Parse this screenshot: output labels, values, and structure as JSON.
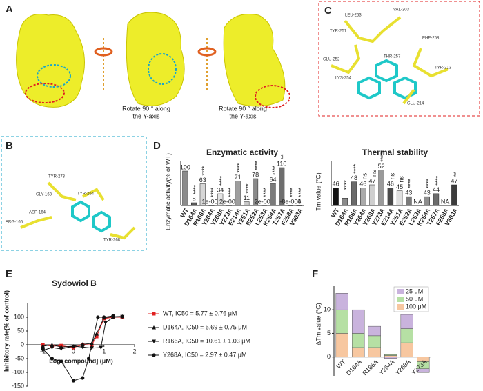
{
  "panels": {
    "A": {
      "letter": "A",
      "captions": [
        [
          "Rotate 90 ° along",
          "the Y-axis"
        ],
        [
          "Rotate 90 ° along",
          "the Y-axis"
        ]
      ]
    },
    "B": {
      "letter": "B",
      "residues": [
        "TYR-273",
        "GLY-163",
        "TYR-264",
        "ASP-164",
        "ARG-166",
        "TYR-268"
      ]
    },
    "C": {
      "letter": "C",
      "residues": [
        "LEU-253",
        "VAL-303",
        "TYR-251",
        "PHE-258",
        "GLU-252",
        "LYS-254",
        "THR-257",
        "TYR-213",
        "GLU-214"
      ]
    },
    "D": {
      "letter": "D"
    },
    "E": {
      "letter": "E"
    },
    "F": {
      "letter": "F"
    }
  },
  "chart_data": [
    {
      "type": "bar",
      "title": "Enzymatic activity",
      "y_label": "Enzymatic activity(% of WT)",
      "categories": [
        "WT",
        "D164A",
        "R166A",
        "Y264A",
        "Y268A",
        "Y273A",
        "E214A",
        "Y251A",
        "E252A",
        "L253A",
        "K254A",
        "T257A",
        "F258A",
        "V303A"
      ],
      "values": [
        100,
        8,
        63,
        0.1,
        34,
        0.2,
        71,
        11,
        78,
        0.2,
        64,
        110,
        -0.0008,
        0
      ],
      "value_labels": [
        "100",
        "8",
        "63",
        "1e-001",
        "34",
        "2e-001",
        "71",
        "11",
        "78",
        "2e-001",
        "64",
        "110",
        "-8e-004",
        "0"
      ],
      "significance": [
        null,
        "****",
        "****",
        "****",
        "****",
        "****",
        "****",
        "****",
        "****",
        "****",
        "****",
        "**",
        "****",
        "****"
      ],
      "colors": [
        "#8c8c8c",
        "#5a5a5a",
        "#d6d6d6",
        "#9a9a9a",
        "#e4e4e4",
        "#7a7a7a",
        "#9e9e9e",
        "#c8c8c8",
        "#8a8a8a",
        "#b0b0b0",
        "#7c7c7c",
        "#6e6e6e",
        "#aaaaaa",
        "#555555"
      ],
      "ylim": [
        0,
        120
      ]
    },
    {
      "type": "bar",
      "title": "Thermal stability",
      "y_label": "Tm value (°C)",
      "categories": [
        "WT",
        "D164A",
        "R166A",
        "Y264A",
        "Y268A",
        "Y273A",
        "E214A",
        "Y251A",
        "E252A",
        "L253A",
        "K254A",
        "T257A",
        "F258A",
        "V303A"
      ],
      "values": [
        46,
        42.5,
        48,
        46,
        47,
        52,
        46,
        45,
        43,
        null,
        43,
        44,
        null,
        47
      ],
      "value_labels": [
        "46",
        null,
        "48",
        "46",
        "47",
        "52",
        "46",
        "45",
        "43",
        "NA",
        "43",
        "44",
        "NA",
        "47"
      ],
      "significance": [
        null,
        "****",
        "****",
        "ns",
        "ns",
        "****",
        "ns",
        "ns",
        "****",
        null,
        "****",
        "****",
        null,
        "**"
      ],
      "colors": [
        "#111111",
        "#8a8a8a",
        "#6a6a6a",
        "#aaaaaa",
        "#cfcfcf",
        "#9a9a9a",
        "#4a4a4a",
        "#e0e0e0",
        "#7a7a7a",
        "#999999",
        "#8e8e8e",
        "#6c6c6c",
        "#999999",
        "#3c3c3c"
      ],
      "ylim": [
        40,
        54
      ]
    },
    {
      "type": "line",
      "title": "Sydowiol B",
      "x_label": "Log [compound]  (μM)",
      "y_label": "Inhibitory rate(% of control)",
      "xlim": [
        -1.5,
        2
      ],
      "xticks": [
        -1,
        0,
        1,
        2
      ],
      "ylim": [
        -150,
        150
      ],
      "yticks": [
        -150,
        -100,
        -50,
        0,
        50,
        100
      ],
      "series": [
        {
          "name": "WT, IC50 = 5.77 ± 0.76 μM",
          "color": "#e02020",
          "marker": "square",
          "x": [
            -1.0,
            -0.7,
            -0.4,
            0,
            0.3,
            0.6,
            0.76,
            1.0,
            1.3,
            1.6
          ],
          "values": [
            0,
            -5,
            -3,
            -10,
            0,
            0,
            30,
            95,
            100,
            100
          ]
        },
        {
          "name": "D164A, IC50 = 5.69 ± 0.75 μM",
          "color": "#111111",
          "marker": "triangle-up",
          "x": [
            -1.0,
            -0.7,
            -0.4,
            0,
            0.3,
            0.6,
            0.76,
            1.0,
            1.3,
            1.6
          ],
          "values": [
            -5,
            0,
            -8,
            -5,
            2,
            5,
            40,
            98,
            102,
            103
          ]
        },
        {
          "name": "R166A, IC50 = 10.61 ± 1.03 μM",
          "color": "#111111",
          "marker": "triangle-down",
          "x": [
            -1.0,
            -0.7,
            -0.4,
            0,
            0.3,
            0.6,
            0.9,
            1.05,
            1.3,
            1.6
          ],
          "values": [
            -20,
            -10,
            -15,
            -5,
            -8,
            -12,
            -10,
            80,
            100,
            102
          ]
        },
        {
          "name": "Y268A, IC50 = 2.97 ± 0.47 μM",
          "color": "#111111",
          "marker": "circle",
          "x": [
            -1.0,
            -0.7,
            -0.4,
            0,
            0.3,
            0.5,
            0.8,
            1.0,
            1.3
          ],
          "values": [
            -15,
            -50,
            -60,
            -130,
            -120,
            -50,
            100,
            100,
            105
          ]
        }
      ]
    },
    {
      "type": "stacked_bar",
      "y_label": "ΔTm value (°C)",
      "categories": [
        "WT",
        "D164A",
        "R166A",
        "Y264A",
        "Y268A",
        "Y273A"
      ],
      "ylim": [
        -4,
        15
      ],
      "yticks": [
        0,
        5,
        10
      ],
      "legend": "upper right",
      "series": [
        {
          "name": "100 μM",
          "color": "#f7c7a0",
          "values": [
            5,
            2,
            2,
            0.3,
            3,
            -1
          ]
        },
        {
          "name": "50 μM",
          "color": "#b6e0a4",
          "values": [
            5,
            3,
            2.5,
            0.2,
            3,
            -1.5
          ]
        },
        {
          "name": "25 μM",
          "color": "#c9b3dd",
          "values": [
            3.5,
            5,
            2,
            -0.3,
            3,
            -0.8
          ]
        }
      ]
    }
  ]
}
